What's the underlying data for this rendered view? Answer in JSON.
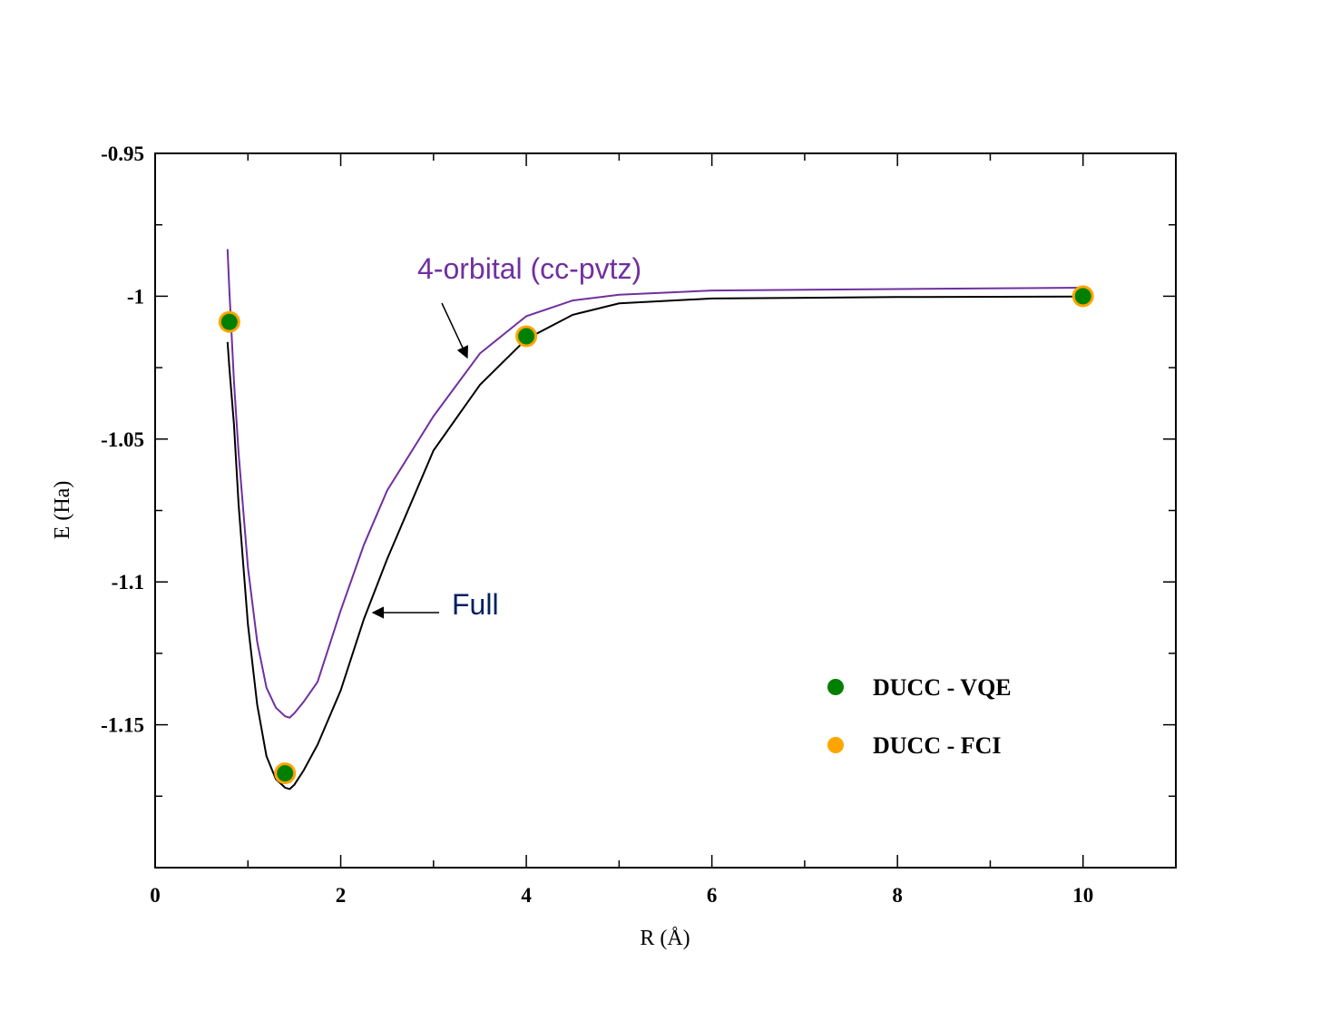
{
  "chart_data": {
    "type": "line",
    "title": "",
    "xlabel": "R (Å)",
    "ylabel": "E (Ha)",
    "xlim": [
      0,
      11
    ],
    "ylim": [
      -1.2,
      -0.95
    ],
    "xticks": [
      0,
      2,
      4,
      6,
      8,
      10
    ],
    "xtick_labels": [
      "0",
      "2",
      "4",
      "6",
      "8",
      "10"
    ],
    "yticks": [
      -0.95,
      -1,
      -1.05,
      -1.1,
      -1.15
    ],
    "ytick_labels": [
      "-0.95",
      "-1",
      "-1.05",
      "-1.1",
      "-1.15"
    ],
    "grid": false,
    "legend_position": "right",
    "series": [
      {
        "name": "4-orbital (cc-pvtz)",
        "kind": "line",
        "color": "#7030a0",
        "x": [
          0.78,
          0.8,
          0.82,
          0.85,
          0.9,
          1.0,
          1.1,
          1.2,
          1.3,
          1.4,
          1.45,
          1.5,
          1.6,
          1.75,
          2.0,
          2.25,
          2.5,
          3.0,
          3.5,
          4.0,
          4.5,
          5.0,
          6.0,
          8.0,
          10.0
        ],
        "y": [
          -0.9835,
          -0.998,
          -1.011,
          -1.03,
          -1.055,
          -1.095,
          -1.121,
          -1.137,
          -1.144,
          -1.147,
          -1.1475,
          -1.146,
          -1.142,
          -1.135,
          -1.11,
          -1.087,
          -1.068,
          -1.042,
          -1.02,
          -1.007,
          -1.0015,
          -0.9995,
          -0.998,
          -0.9975,
          -0.997
        ]
      },
      {
        "name": "Full",
        "kind": "line",
        "color": "#000000",
        "x": [
          0.78,
          0.8,
          0.85,
          0.9,
          1.0,
          1.1,
          1.2,
          1.3,
          1.4,
          1.45,
          1.5,
          1.6,
          1.75,
          2.0,
          2.25,
          2.5,
          3.0,
          3.5,
          4.0,
          4.5,
          5.0,
          6.0,
          8.0,
          10.0
        ],
        "y": [
          -1.016,
          -1.025,
          -1.045,
          -1.073,
          -1.115,
          -1.143,
          -1.161,
          -1.169,
          -1.172,
          -1.1725,
          -1.171,
          -1.166,
          -1.157,
          -1.138,
          -1.113,
          -1.092,
          -1.054,
          -1.031,
          -1.015,
          -1.0065,
          -1.0025,
          -1.0008,
          -1.0003,
          -1.0001
        ]
      },
      {
        "name": "DUCC - VQE",
        "kind": "scatter",
        "color": "#008000",
        "x": [
          0.8,
          1.4,
          4.0,
          10.0
        ],
        "y": [
          -1.009,
          -1.167,
          -1.014,
          -1.0
        ]
      },
      {
        "name": "DUCC - FCI",
        "kind": "scatter",
        "color": "#ffa500",
        "x": [
          0.8,
          1.4,
          4.0,
          10.0
        ],
        "y": [
          -1.009,
          -1.167,
          -1.014,
          -1.0
        ]
      }
    ],
    "annotations": [
      {
        "text": "4-orbital (cc-pvtz)",
        "color": "#7030a0",
        "points_to": [
          3.4,
          -1.022
        ]
      },
      {
        "text": "Full",
        "color": "#002060",
        "points_to": [
          2.3,
          -1.111
        ]
      }
    ],
    "legend": [
      {
        "label": "DUCC - VQE",
        "color": "#008000"
      },
      {
        "label": "DUCC - FCI",
        "color": "#ffa500"
      }
    ]
  }
}
